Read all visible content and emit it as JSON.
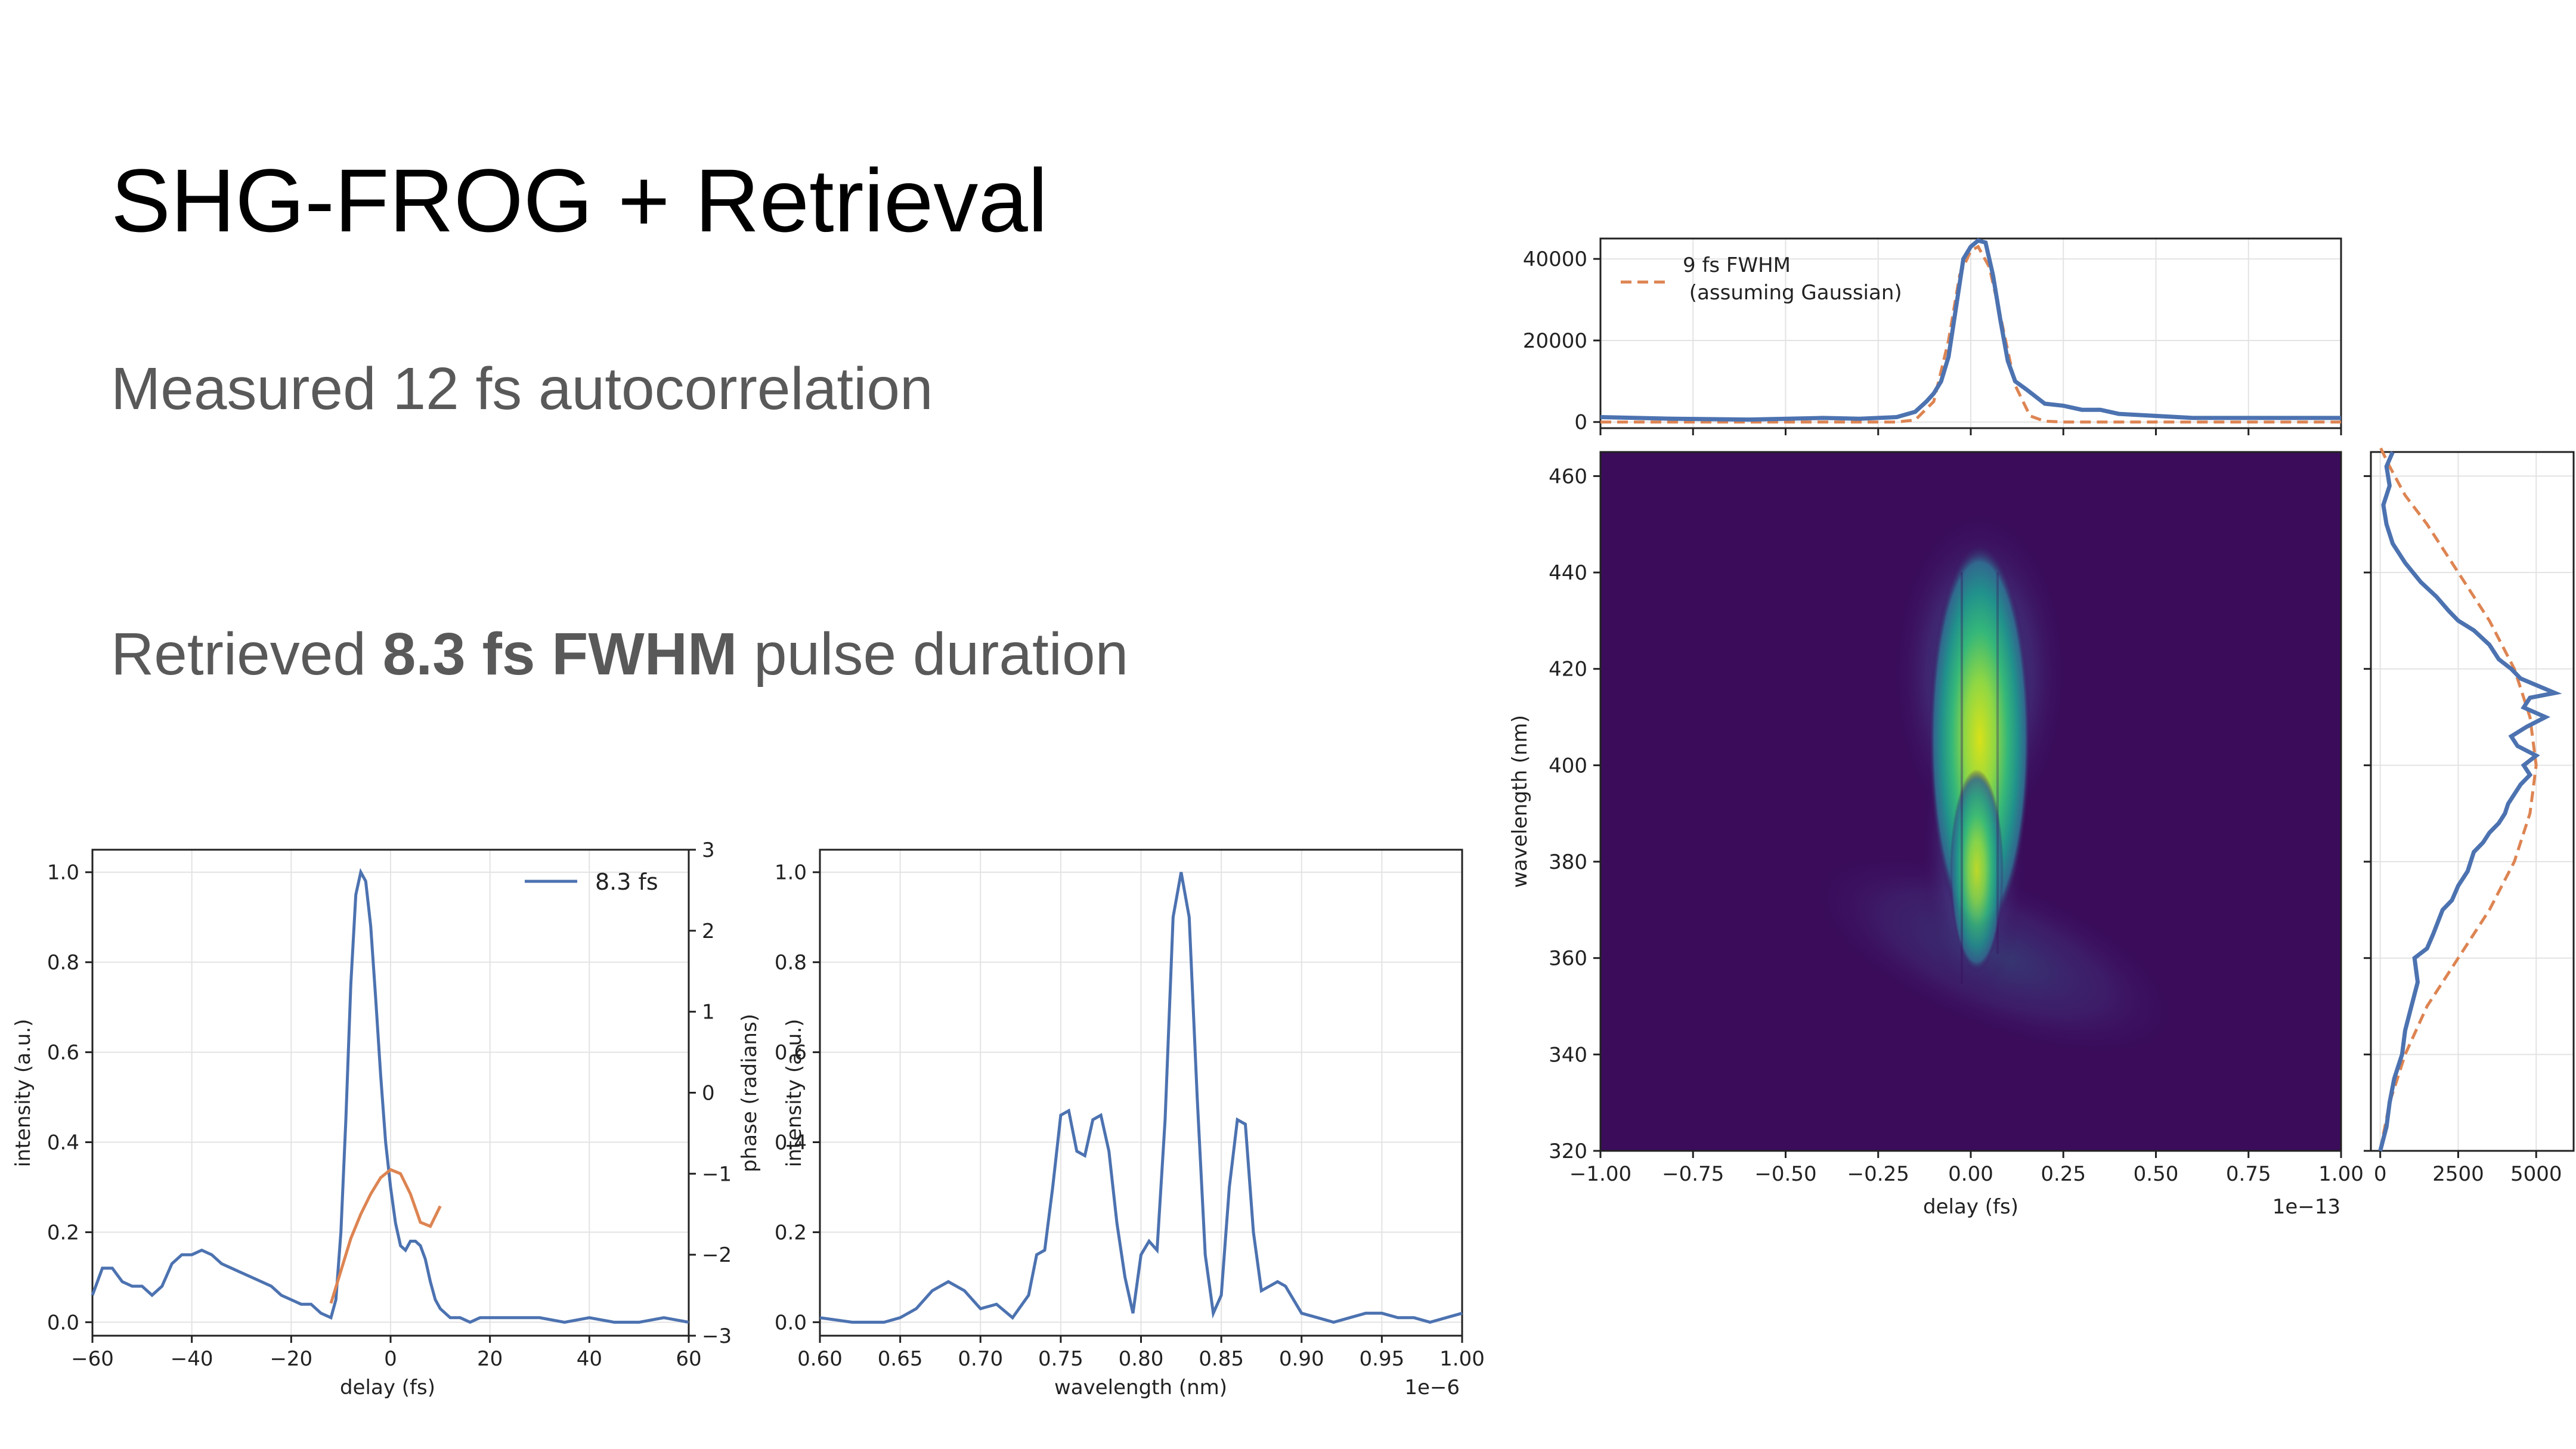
{
  "slide": {
    "title": "SHG-FROG + Retrieval",
    "line1": "Measured 12 fs autocorrelation",
    "line2_prefix": "Retrieved ",
    "line2_bold": "8.3 fs FWHM",
    "line2_suffix": " pulse duration"
  },
  "chart_data": [
    {
      "type": "line",
      "id": "temporal",
      "xlabel": "delay (fs)",
      "ylabel": "intensity (a.u.)",
      "ylabel2": "phase (radians)",
      "xlim": [
        -60,
        60
      ],
      "ylim": [
        -0.03,
        1.05
      ],
      "y2lim": [
        -3,
        3
      ],
      "xticks": [
        "−60",
        "−40",
        "−20",
        "0",
        "20",
        "40",
        "60"
      ],
      "yticks": [
        "0.0",
        "0.2",
        "0.4",
        "0.6",
        "0.8",
        "1.0"
      ],
      "y2ticks": [
        "−3",
        "−2",
        "−1",
        "0",
        "1",
        "2",
        "3"
      ],
      "grid": true,
      "legend": "top-right",
      "colors": {
        "intensity": "#4c72b0",
        "phase": "#dd8452"
      },
      "series": [
        {
          "name": "8.3 fs",
          "axis": "left",
          "x": [
            -60,
            -58,
            -56,
            -54,
            -52,
            -50,
            -48,
            -46,
            -44,
            -42,
            -40,
            -38,
            -36,
            -34,
            -32,
            -30,
            -28,
            -26,
            -24,
            -22,
            -20,
            -18,
            -16,
            -14,
            -12,
            -11,
            -10,
            -9,
            -8,
            -7,
            -6,
            -5,
            -4,
            -3,
            -2,
            -1,
            0,
            1,
            2,
            3,
            4,
            5,
            6,
            7,
            8,
            9,
            10,
            12,
            14,
            16,
            18,
            20,
            25,
            30,
            35,
            40,
            45,
            50,
            55,
            60
          ],
          "values": [
            0.06,
            0.12,
            0.12,
            0.09,
            0.08,
            0.08,
            0.06,
            0.08,
            0.13,
            0.15,
            0.15,
            0.16,
            0.15,
            0.13,
            0.12,
            0.11,
            0.1,
            0.09,
            0.08,
            0.06,
            0.05,
            0.04,
            0.04,
            0.02,
            0.01,
            0.05,
            0.2,
            0.45,
            0.75,
            0.95,
            1.0,
            0.98,
            0.88,
            0.72,
            0.55,
            0.4,
            0.3,
            0.22,
            0.17,
            0.16,
            0.18,
            0.18,
            0.17,
            0.14,
            0.09,
            0.05,
            0.03,
            0.01,
            0.01,
            0.0,
            0.01,
            0.01,
            0.01,
            0.01,
            0.0,
            0.01,
            0.0,
            0.0,
            0.01,
            0.0
          ]
        },
        {
          "name": "",
          "axis": "right",
          "x": [
            -12,
            -10,
            -8,
            -6,
            -4,
            -2,
            0,
            2,
            4,
            6,
            8,
            10
          ],
          "values": [
            -2.6,
            -2.2,
            -1.8,
            -1.5,
            -1.25,
            -1.05,
            -0.95,
            -1.0,
            -1.25,
            -1.6,
            -1.65,
            -1.4
          ]
        }
      ]
    },
    {
      "type": "line",
      "id": "spectrum",
      "xlabel": "wavelength (nm)",
      "ylabel": "intensity (a.u.)",
      "offset_text": "1e−6",
      "xlim": [
        0.6,
        1.0
      ],
      "ylim": [
        -0.03,
        1.05
      ],
      "xticks": [
        "0.60",
        "0.65",
        "0.70",
        "0.75",
        "0.80",
        "0.85",
        "0.90",
        "0.95",
        "1.00"
      ],
      "yticks": [
        "0.0",
        "0.2",
        "0.4",
        "0.6",
        "0.8",
        "1.0"
      ],
      "grid": true,
      "colors": {
        "line": "#4c72b0"
      },
      "series": [
        {
          "name": "",
          "x": [
            0.6,
            0.62,
            0.64,
            0.65,
            0.66,
            0.67,
            0.68,
            0.69,
            0.7,
            0.71,
            0.72,
            0.73,
            0.735,
            0.74,
            0.745,
            0.75,
            0.755,
            0.76,
            0.765,
            0.77,
            0.775,
            0.78,
            0.785,
            0.79,
            0.795,
            0.8,
            0.805,
            0.81,
            0.815,
            0.82,
            0.825,
            0.83,
            0.835,
            0.84,
            0.845,
            0.85,
            0.855,
            0.86,
            0.865,
            0.87,
            0.875,
            0.88,
            0.885,
            0.89,
            0.9,
            0.91,
            0.92,
            0.93,
            0.94,
            0.95,
            0.96,
            0.97,
            0.98,
            0.99,
            1.0
          ],
          "values": [
            0.01,
            0.0,
            0.0,
            0.01,
            0.03,
            0.07,
            0.09,
            0.07,
            0.03,
            0.04,
            0.01,
            0.06,
            0.15,
            0.16,
            0.3,
            0.46,
            0.47,
            0.38,
            0.37,
            0.45,
            0.46,
            0.38,
            0.22,
            0.1,
            0.02,
            0.15,
            0.18,
            0.16,
            0.45,
            0.9,
            1.0,
            0.9,
            0.5,
            0.15,
            0.02,
            0.06,
            0.3,
            0.45,
            0.44,
            0.2,
            0.07,
            0.08,
            0.09,
            0.08,
            0.02,
            0.01,
            0.0,
            0.01,
            0.02,
            0.02,
            0.01,
            0.01,
            0.0,
            0.01,
            0.02
          ]
        }
      ]
    },
    {
      "type": "heatmap",
      "id": "frog-trace",
      "xlabel": "delay (fs)",
      "ylabel": "wavelength (nm)",
      "offset_text": "1e−13",
      "xlim": [
        -1.0,
        1.0
      ],
      "ylim": [
        320,
        465
      ],
      "xticks": [
        "−1.00",
        "−0.75",
        "−0.50",
        "−0.25",
        "0.00",
        "0.25",
        "0.50",
        "0.75",
        "1.00"
      ],
      "yticks": [
        "320",
        "340",
        "360",
        "380",
        "400",
        "420",
        "440",
        "460"
      ],
      "colormap": "viridis",
      "colors": {
        "background": "#3a0c5a",
        "peak": "#d8e219"
      }
    },
    {
      "type": "line",
      "id": "frog-marginal-delay",
      "xlim": [
        -1.0,
        1.0
      ],
      "ylim": [
        -1500,
        45000
      ],
      "yticks": [
        "0",
        "20000",
        "40000"
      ],
      "grid": true,
      "legend": "top-left",
      "colors": {
        "measured": "#4c72b0",
        "gaussian": "#dd8452"
      },
      "series": [
        {
          "name": "",
          "x": [
            -1.0,
            -0.8,
            -0.6,
            -0.4,
            -0.3,
            -0.2,
            -0.15,
            -0.12,
            -0.1,
            -0.08,
            -0.06,
            -0.04,
            -0.02,
            0.0,
            0.02,
            0.04,
            0.06,
            0.08,
            0.1,
            0.12,
            0.15,
            0.2,
            0.25,
            0.3,
            0.35,
            0.4,
            0.5,
            0.6,
            0.8,
            1.0
          ],
          "values": [
            1200,
            800,
            600,
            1000,
            800,
            1200,
            2500,
            5000,
            7000,
            10000,
            16000,
            28000,
            40000,
            43000,
            44500,
            44000,
            36000,
            25000,
            15000,
            10000,
            8000,
            4500,
            4000,
            3000,
            3000,
            2000,
            1500,
            1000,
            1000,
            1000
          ]
        },
        {
          "name": "9 fs FWHM\n (assuming Gaussian)",
          "x": [
            -1.0,
            -0.3,
            -0.2,
            -0.15,
            -0.1,
            -0.06,
            -0.03,
            0.0,
            0.02,
            0.05,
            0.08,
            0.12,
            0.16,
            0.2,
            0.25,
            0.3,
            1.0
          ],
          "values": [
            0,
            0,
            0,
            500,
            5000,
            20000,
            36000,
            42000,
            43000,
            38000,
            26000,
            9000,
            1500,
            200,
            0,
            0,
            0
          ]
        }
      ]
    },
    {
      "type": "line",
      "id": "frog-marginal-wavelength",
      "xlim": [
        -300,
        6200
      ],
      "ylim": [
        320,
        465
      ],
      "xticks": [
        "0",
        "2500",
        "5000"
      ],
      "grid": true,
      "colors": {
        "measured": "#4c72b0",
        "gaussian": "#dd8452"
      },
      "series": [
        {
          "name": "",
          "x": [
            0,
            200,
            300,
            450,
            700,
            800,
            1000,
            1200,
            1100,
            1500,
            1700,
            2000,
            2300,
            2500,
            2800,
            3000,
            3300,
            3500,
            3800,
            4000,
            4100,
            4300,
            4500,
            4800,
            4600,
            5000,
            4400,
            4200,
            4700,
            5300,
            4600,
            4800,
            5600,
            4500,
            4200,
            3800,
            3500,
            3000,
            2500,
            2200,
            1800,
            1300,
            800,
            400,
            200,
            100,
            300,
            200,
            400
          ],
          "y": [
            320,
            325,
            330,
            335,
            340,
            345,
            350,
            355,
            360,
            362,
            365,
            370,
            372,
            375,
            378,
            382,
            384,
            386,
            388,
            390,
            392,
            394,
            396,
            398,
            400,
            402,
            404,
            406,
            408,
            410,
            412,
            414,
            415,
            418,
            420,
            422,
            425,
            428,
            430,
            432,
            435,
            438,
            442,
            446,
            450,
            454,
            458,
            462,
            465
          ]
        },
        {
          "name": "",
          "x": [
            0,
            300,
            800,
            1500,
            2500,
            3500,
            4300,
            4800,
            5000,
            4800,
            4300,
            3500,
            2500,
            1500,
            800,
            300,
            0
          ],
          "y": [
            320,
            330,
            340,
            350,
            360,
            370,
            380,
            390,
            400,
            410,
            420,
            430,
            440,
            450,
            456,
            462,
            466
          ]
        }
      ]
    }
  ]
}
